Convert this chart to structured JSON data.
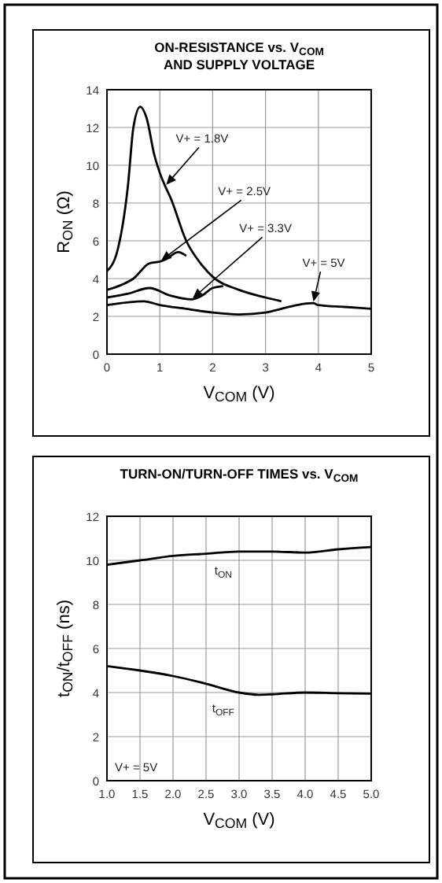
{
  "chart_data": [
    {
      "type": "line",
      "title": "ON-RESISTANCE vs. V$_{COM}$\nAND SUPPLY VOLTAGE",
      "xlabel": "V$_{COM}$ (V)",
      "ylabel": "R$_{ON}$ (Ω)",
      "xlim": [
        0,
        5
      ],
      "xticks": [
        0,
        1,
        2,
        3,
        4,
        5
      ],
      "ylim": [
        0,
        14
      ],
      "yticks": [
        0,
        2,
        4,
        6,
        8,
        10,
        12,
        14
      ],
      "grid": true,
      "marker": "none",
      "line_style": "solid",
      "series": [
        {
          "name": "V+ = 1.8V",
          "color": "#000000",
          "x": [
            0,
            0.2,
            0.4,
            0.5,
            0.63,
            0.75,
            0.9,
            1.0,
            1.1,
            1.2,
            1.5,
            1.8,
            2.0,
            2.5,
            3.0,
            3.3
          ],
          "values": [
            4.4,
            5.5,
            9,
            12,
            13.1,
            12.5,
            10.5,
            9.6,
            8.9,
            8.3,
            6.0,
            4.7,
            4.1,
            3.4,
            3.0,
            2.8
          ]
        },
        {
          "name": "V+ = 2.5V",
          "color": "#000000",
          "x": [
            0,
            0.3,
            0.5,
            0.8,
            1.0,
            1.1,
            1.35,
            1.5
          ],
          "values": [
            3.4,
            3.7,
            4.0,
            4.8,
            4.9,
            5.0,
            5.4,
            5.2
          ]
        },
        {
          "name": "V+ = 3.3V",
          "color": "#000000",
          "x": [
            0,
            0.4,
            0.8,
            1.2,
            1.6,
            1.8,
            2.0,
            2.2
          ],
          "values": [
            3.0,
            3.2,
            3.5,
            3.1,
            2.9,
            3.1,
            3.5,
            3.6
          ]
        },
        {
          "name": "V+ = 5V",
          "color": "#000000",
          "x": [
            0,
            0.7,
            1.0,
            1.5,
            2.0,
            2.5,
            3.0,
            3.3,
            3.6,
            3.9,
            4.0,
            4.5,
            5.0
          ],
          "values": [
            2.6,
            2.8,
            2.6,
            2.4,
            2.2,
            2.1,
            2.2,
            2.4,
            2.6,
            2.7,
            2.6,
            2.5,
            2.4
          ]
        }
      ]
    },
    {
      "type": "line",
      "title": "TURN-ON/TURN-OFF TIMES vs. V$_{COM}$",
      "xlabel": "V$_{COM}$ (V)",
      "ylabel": "t$_{ON}$/t$_{OFF}$ (ns)",
      "xlim": [
        1,
        5
      ],
      "xticks": [
        {
          "value": 1,
          "label": "1.0"
        },
        1.5,
        {
          "value": 2,
          "label": "2.0"
        },
        2.5,
        {
          "value": 3,
          "label": "3.0"
        },
        3.5,
        {
          "value": 4,
          "label": "4.0"
        },
        4.5,
        {
          "value": 5,
          "label": "5.0"
        }
      ],
      "ylim": [
        0,
        12
      ],
      "yticks": [
        0,
        2,
        4,
        6,
        8,
        10,
        12
      ],
      "grid": true,
      "marker": "none",
      "line_style": "solid",
      "annotations": [
        "V+ = 5V"
      ],
      "series": [
        {
          "name": "t$_{ON}$",
          "color": "#000000",
          "x": [
            1.0,
            1.5,
            2.0,
            2.5,
            3.0,
            3.5,
            4.0,
            4.5,
            5.0
          ],
          "values": [
            9.8,
            10.0,
            10.2,
            10.3,
            10.4,
            10.4,
            10.35,
            10.5,
            10.6
          ]
        },
        {
          "name": "t$_{OFF}$",
          "color": "#000000",
          "x": [
            1.0,
            1.5,
            2.0,
            2.5,
            3.0,
            3.3,
            3.5,
            4.0,
            4.5,
            5.0
          ],
          "values": [
            5.2,
            5.0,
            4.75,
            4.4,
            4.0,
            3.9,
            3.92,
            4.0,
            3.97,
            3.95
          ]
        }
      ]
    }
  ]
}
